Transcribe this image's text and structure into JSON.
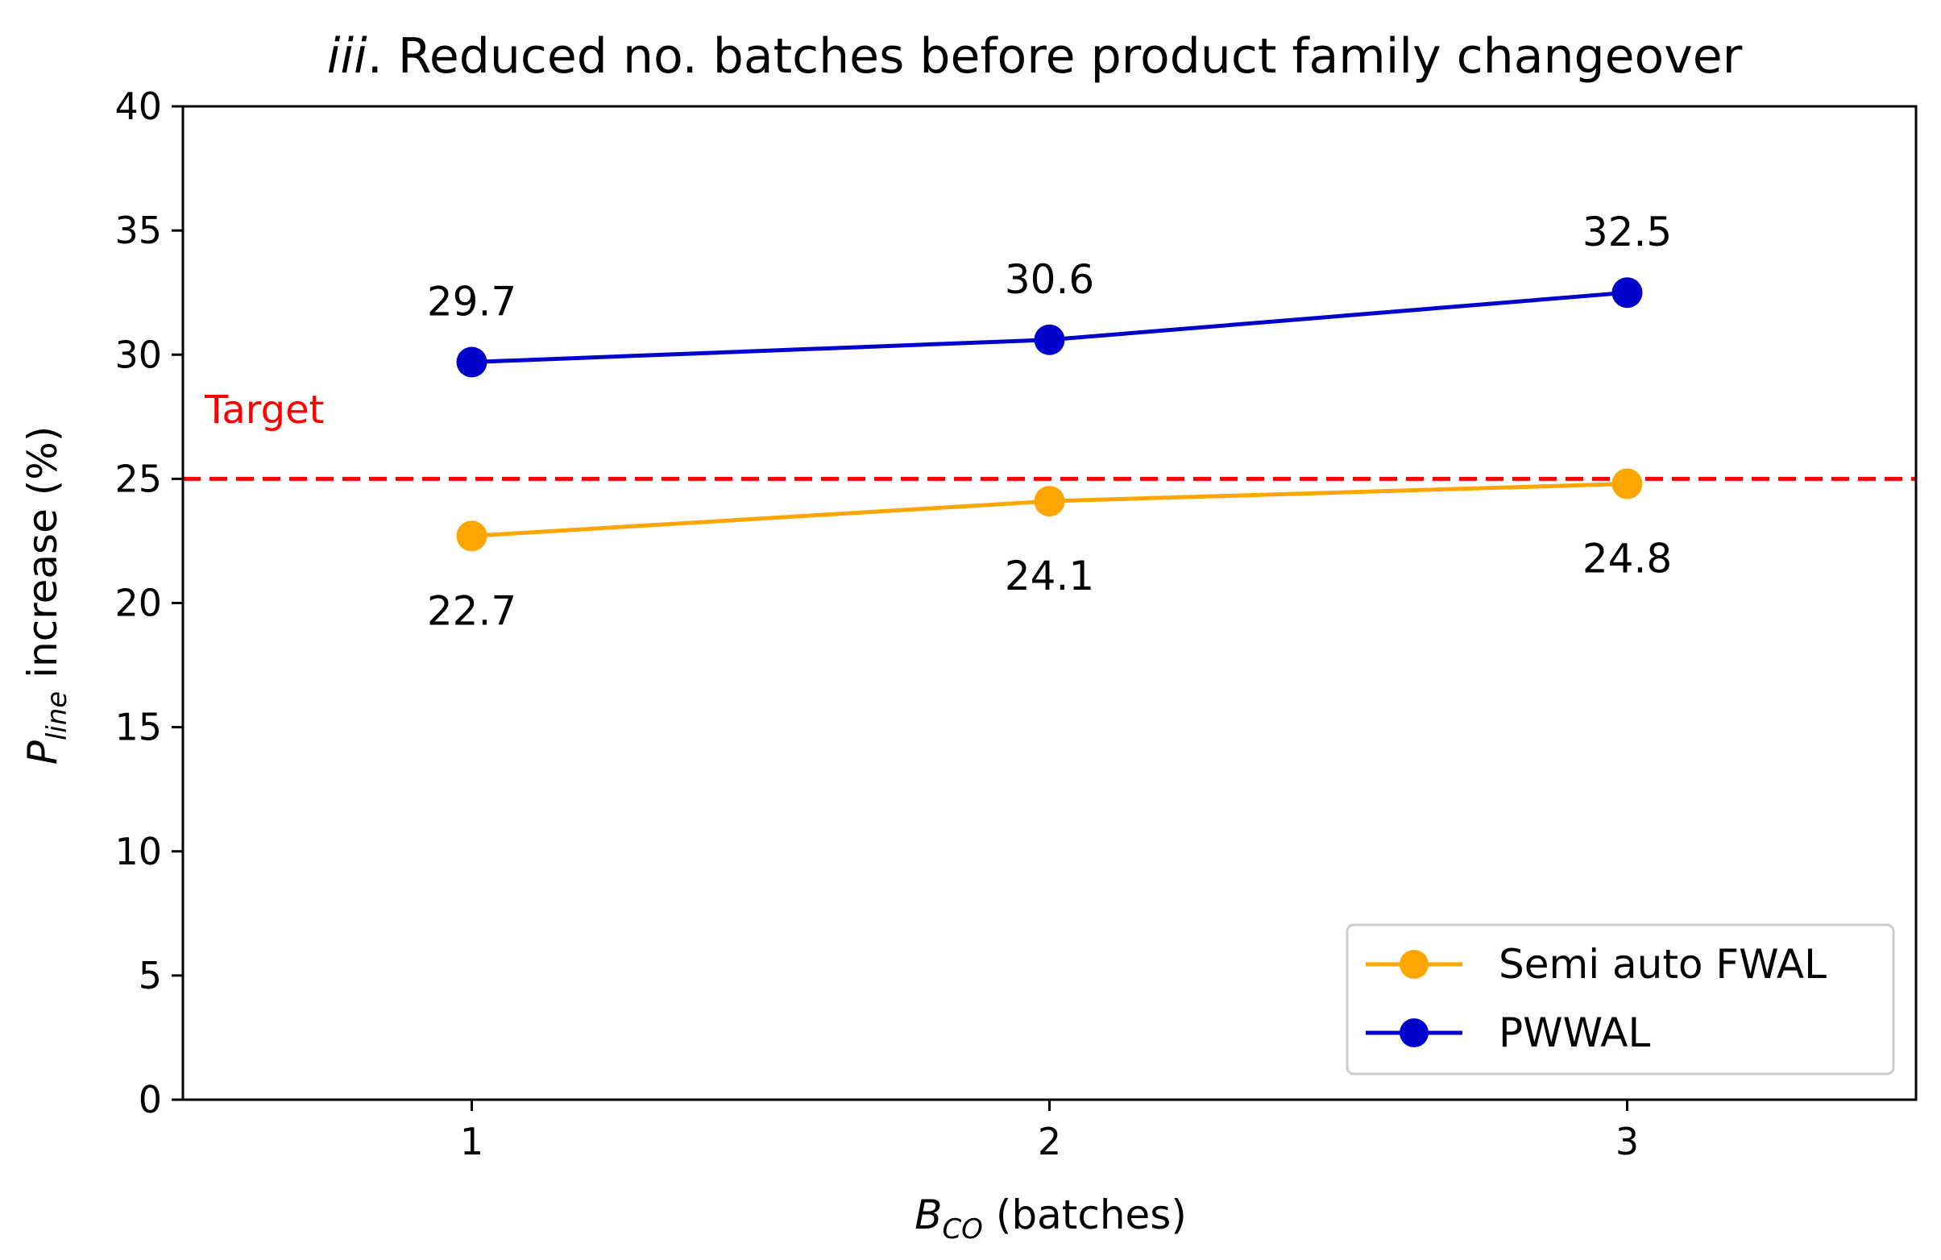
{
  "chart_data": {
    "type": "line",
    "title_prefix": "iii",
    "title_sep": ".",
    "title": "Reduced no. batches before product family changeover",
    "xlabel_symbol": "B",
    "xlabel_sub": "CO",
    "xlabel_rest": "(batches)",
    "ylabel_symbol": "P",
    "ylabel_sub": "line",
    "ylabel_rest": "increase (%)",
    "x": [
      1,
      2,
      3
    ],
    "xlim": [
      0.5,
      3.5
    ],
    "ylim": [
      0,
      40
    ],
    "xticks": [
      1,
      2,
      3
    ],
    "yticks": [
      0,
      5,
      10,
      15,
      20,
      25,
      30,
      35,
      40
    ],
    "grid": false,
    "legend_position": "lower-right",
    "series": [
      {
        "name": "Semi auto FWAL",
        "color": "#ffa500",
        "marker": "circle",
        "values": [
          22.7,
          24.1,
          24.8
        ],
        "labels": [
          "22.7",
          "24.1",
          "24.8"
        ],
        "label_side": "below"
      },
      {
        "name": "PWWAL",
        "color": "#0000cc",
        "marker": "circle",
        "values": [
          29.7,
          30.6,
          32.5
        ],
        "labels": [
          "29.7",
          "30.6",
          "32.5"
        ],
        "label_side": "above"
      }
    ],
    "reference_line": {
      "value": 25,
      "label": "Target",
      "color": "#ff0000",
      "style": "dashed"
    }
  }
}
